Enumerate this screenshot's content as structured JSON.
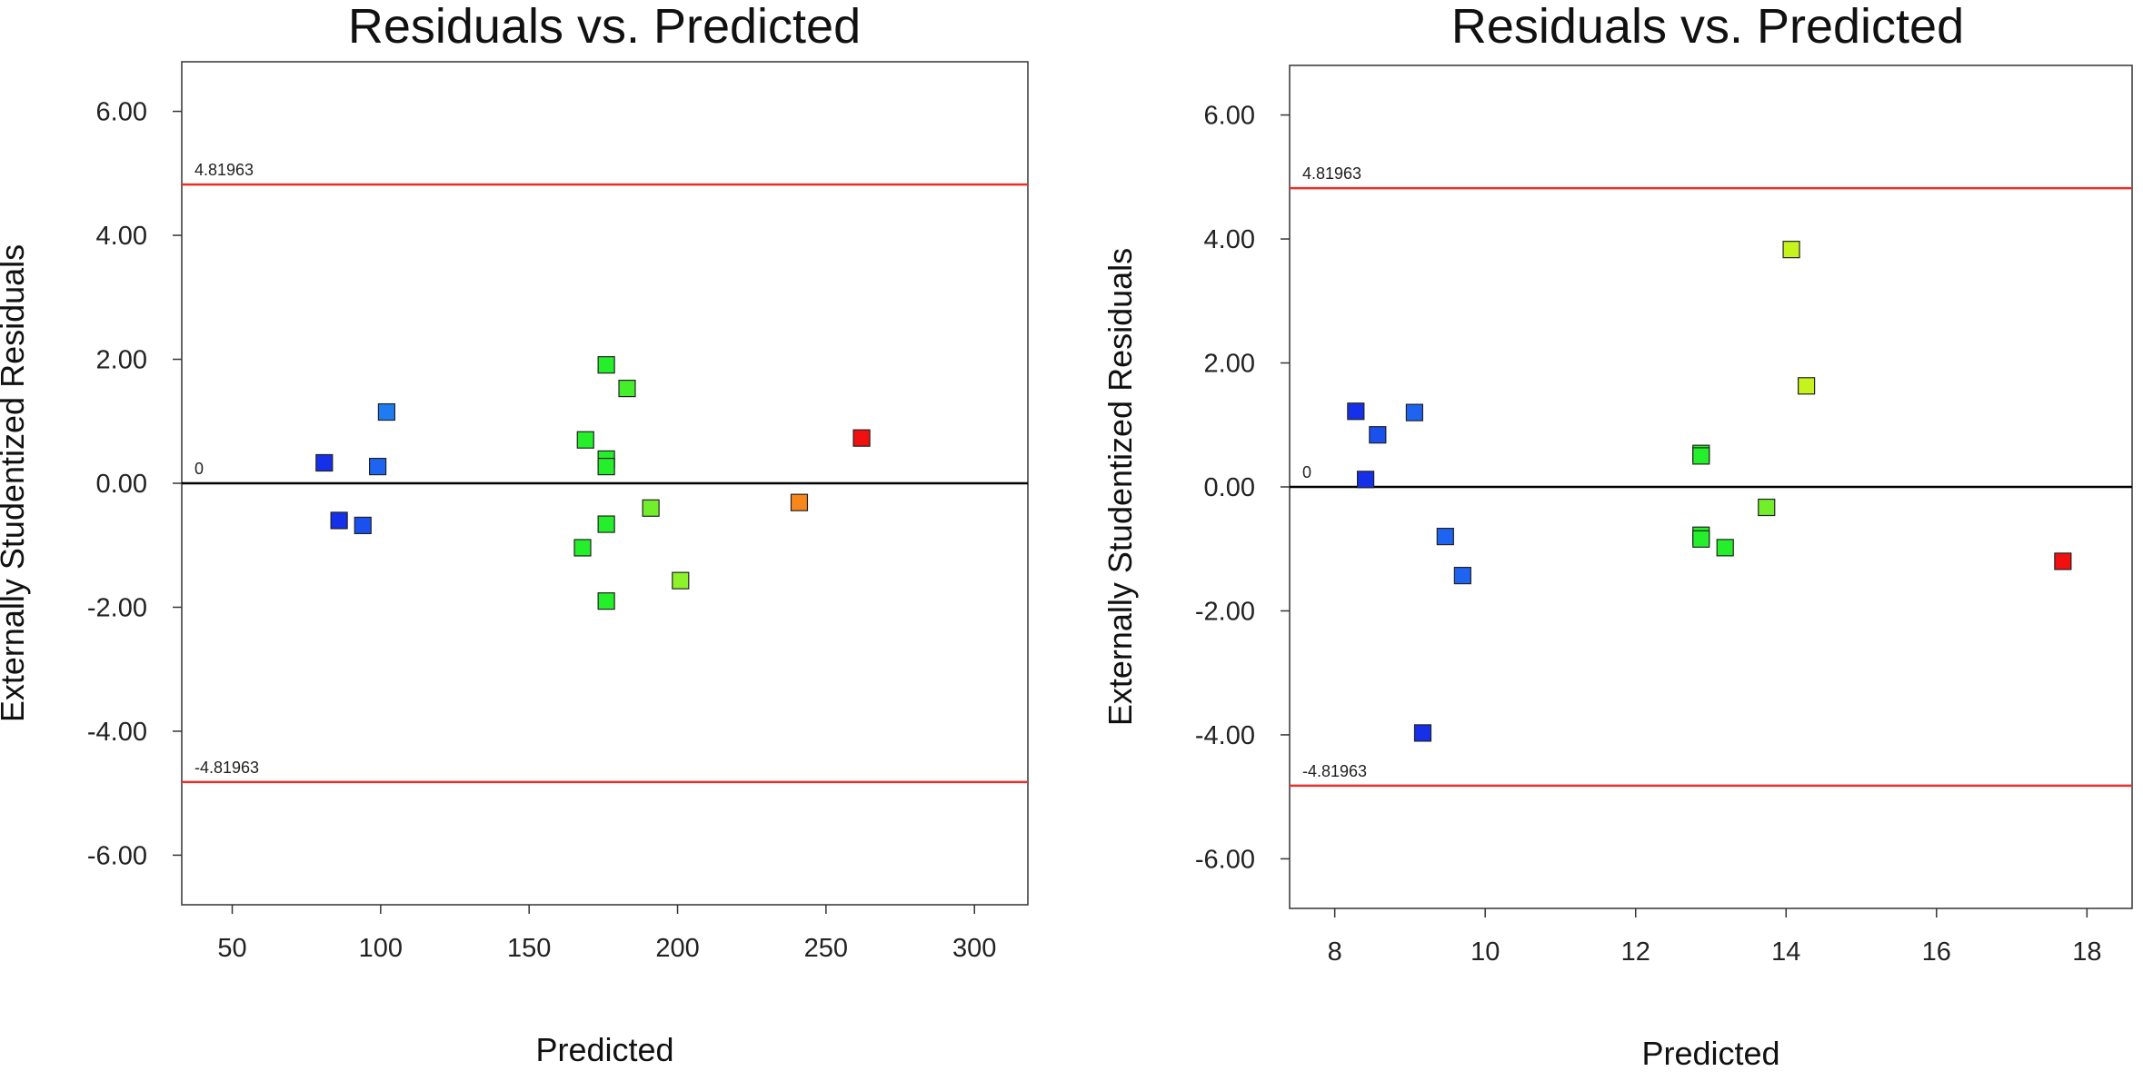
{
  "chart_data": [
    {
      "type": "scatter",
      "title": "Residuals vs. Predicted",
      "xlabel": "Predicted",
      "ylabel": "Externally Studentized Residuals",
      "xlim": [
        33,
        318
      ],
      "ylim": [
        -6.8,
        6.8
      ],
      "xticks": [
        50,
        100,
        150,
        200,
        250,
        300
      ],
      "yticks": [
        -6,
        -4,
        -2,
        0,
        2,
        4,
        6
      ],
      "ytick_labels": [
        "-6.00",
        "-4.00",
        "-2.00",
        "0.00",
        "2.00",
        "4.00",
        "6.00"
      ],
      "reference_lines": [
        {
          "value": 4.81963,
          "label": "4.81963",
          "color": "#e8302a"
        },
        {
          "value": 0,
          "label": "0",
          "color": "#000000"
        },
        {
          "value": -4.81963,
          "label": "-4.81963",
          "color": "#e8302a"
        }
      ],
      "points": [
        {
          "x": 81,
          "y": 0.33,
          "color": "#1530e8"
        },
        {
          "x": 86,
          "y": -0.6,
          "color": "#1530e8"
        },
        {
          "x": 94,
          "y": -0.68,
          "color": "#1a50ee"
        },
        {
          "x": 99,
          "y": 0.27,
          "color": "#1e64f0"
        },
        {
          "x": 102,
          "y": 1.15,
          "color": "#1e7cf2"
        },
        {
          "x": 168,
          "y": -1.04,
          "color": "#25ee2a"
        },
        {
          "x": 169,
          "y": 0.7,
          "color": "#25ee2a"
        },
        {
          "x": 176,
          "y": 1.91,
          "color": "#25ee2a"
        },
        {
          "x": 176,
          "y": 0.39,
          "color": "#25ee2a"
        },
        {
          "x": 176,
          "y": 0.27,
          "color": "#25ee2a"
        },
        {
          "x": 176,
          "y": -0.66,
          "color": "#25ee2a"
        },
        {
          "x": 176,
          "y": -1.9,
          "color": "#25ee2a"
        },
        {
          "x": 183,
          "y": 1.53,
          "color": "#45ee2a"
        },
        {
          "x": 191,
          "y": -0.4,
          "color": "#72ee2a"
        },
        {
          "x": 201,
          "y": -1.57,
          "color": "#8cf22a"
        },
        {
          "x": 241,
          "y": -0.31,
          "color": "#f7861c"
        },
        {
          "x": 262,
          "y": 0.73,
          "color": "#f01010"
        }
      ]
    },
    {
      "type": "scatter",
      "title": "Residuals vs. Predicted",
      "xlabel": "Predicted",
      "ylabel": "Externally Studentized Residuals",
      "xlim": [
        7.4,
        18.6
      ],
      "ylim": [
        -6.8,
        6.8
      ],
      "xticks": [
        8,
        10,
        12,
        14,
        16,
        18
      ],
      "yticks": [
        -6,
        -4,
        -2,
        0,
        2,
        4,
        6
      ],
      "ytick_labels": [
        "-6.00",
        "-4.00",
        "-2.00",
        "0.00",
        "2.00",
        "4.00",
        "6.00"
      ],
      "reference_lines": [
        {
          "value": 4.81963,
          "label": "4.81963",
          "color": "#e8302a"
        },
        {
          "value": 0,
          "label": "0",
          "color": "#000000"
        },
        {
          "value": -4.81963,
          "label": "-4.81963",
          "color": "#e8302a"
        }
      ],
      "points": [
        {
          "x": 8.28,
          "y": 1.22,
          "color": "#1530e8"
        },
        {
          "x": 8.41,
          "y": 0.12,
          "color": "#1530e8"
        },
        {
          "x": 8.57,
          "y": 0.84,
          "color": "#1a50ee"
        },
        {
          "x": 9.06,
          "y": 1.2,
          "color": "#1e64f0"
        },
        {
          "x": 9.17,
          "y": -3.97,
          "color": "#1530e8"
        },
        {
          "x": 9.47,
          "y": -0.8,
          "color": "#1e64f0"
        },
        {
          "x": 9.7,
          "y": -1.43,
          "color": "#1e64f0"
        },
        {
          "x": 12.87,
          "y": 0.54,
          "color": "#25ee2a"
        },
        {
          "x": 12.87,
          "y": 0.5,
          "color": "#25ee2a"
        },
        {
          "x": 12.87,
          "y": -0.78,
          "color": "#25ee2a"
        },
        {
          "x": 12.87,
          "y": -0.84,
          "color": "#25ee2a"
        },
        {
          "x": 13.19,
          "y": -0.98,
          "color": "#25ee2a"
        },
        {
          "x": 13.74,
          "y": -0.33,
          "color": "#72ee2a"
        },
        {
          "x": 14.07,
          "y": 3.83,
          "color": "#c6f21e"
        },
        {
          "x": 14.27,
          "y": 1.63,
          "color": "#c6f21e"
        },
        {
          "x": 17.68,
          "y": -1.2,
          "color": "#f01010"
        }
      ]
    }
  ]
}
